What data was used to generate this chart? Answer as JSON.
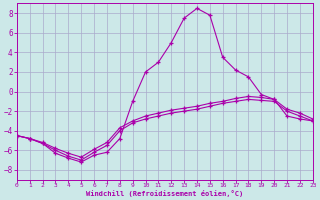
{
  "xlabel": "Windchill (Refroidissement éolien,°C)",
  "background_color": "#cce8e8",
  "grid_color": "#aaaacc",
  "line_color": "#aa00aa",
  "xlim": [
    0,
    23
  ],
  "ylim": [
    -9,
    9
  ],
  "yticks": [
    -8,
    -6,
    -4,
    -2,
    0,
    2,
    4,
    6,
    8
  ],
  "xticks": [
    0,
    1,
    2,
    3,
    4,
    5,
    6,
    7,
    8,
    9,
    10,
    11,
    12,
    13,
    14,
    15,
    16,
    17,
    18,
    19,
    20,
    21,
    22,
    23
  ],
  "line1_x": [
    0,
    1,
    2,
    3,
    4,
    5,
    6,
    7,
    8,
    9,
    10,
    11,
    12,
    13,
    14,
    15,
    16,
    17,
    18,
    19,
    20,
    21,
    22,
    23
  ],
  "line1_y": [
    -4.5,
    -4.8,
    -5.3,
    -6.3,
    -6.8,
    -7.2,
    -6.5,
    -6.2,
    -4.8,
    -1.0,
    2.0,
    3.0,
    5.0,
    7.5,
    8.5,
    7.8,
    3.5,
    2.2,
    1.5,
    -0.3,
    -0.8,
    -2.5,
    -2.8,
    -3.0
  ],
  "line2_x": [
    0,
    1,
    2,
    3,
    4,
    5,
    6,
    7,
    8,
    9,
    10,
    11,
    12,
    13,
    14,
    15,
    16,
    17,
    18,
    19,
    20,
    21,
    22,
    23
  ],
  "line2_y": [
    -4.5,
    -4.8,
    -5.3,
    -6.0,
    -6.6,
    -7.0,
    -6.2,
    -5.5,
    -4.0,
    -3.2,
    -2.8,
    -2.5,
    -2.2,
    -2.0,
    -1.8,
    -1.5,
    -1.2,
    -1.0,
    -0.8,
    -0.9,
    -1.0,
    -2.0,
    -2.5,
    -3.0
  ],
  "line3_x": [
    0,
    1,
    2,
    3,
    4,
    5,
    6,
    7,
    8,
    9,
    10,
    11,
    12,
    13,
    14,
    15,
    16,
    17,
    18,
    19,
    20,
    21,
    22,
    23
  ],
  "line3_y": [
    -4.5,
    -4.8,
    -5.2,
    -5.8,
    -6.3,
    -6.7,
    -5.9,
    -5.2,
    -3.7,
    -3.0,
    -2.5,
    -2.2,
    -1.9,
    -1.7,
    -1.5,
    -1.2,
    -1.0,
    -0.7,
    -0.5,
    -0.6,
    -0.8,
    -1.8,
    -2.2,
    -2.8
  ]
}
